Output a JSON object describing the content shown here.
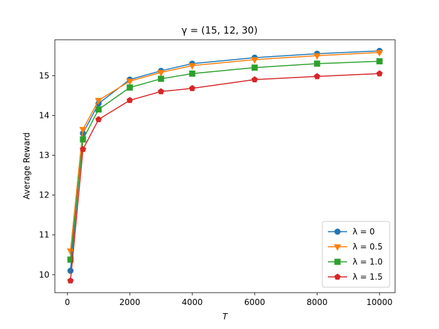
{
  "chart_data": {
    "type": "line",
    "title": "γ = (15, 12, 30)",
    "xlabel": "T",
    "ylabel": "Average Reward",
    "xlim": [
      -400,
      10500
    ],
    "ylim": [
      9.55,
      15.9
    ],
    "x_ticks": [
      0,
      2000,
      4000,
      6000,
      8000,
      10000
    ],
    "y_ticks": [
      10,
      11,
      12,
      13,
      14,
      15
    ],
    "grid": false,
    "legend_position": "lower right",
    "x": [
      100,
      500,
      1000,
      2000,
      3000,
      4000,
      6000,
      8000,
      10000
    ],
    "series": [
      {
        "name": "λ = 0",
        "color": "#1f77b4",
        "marker": "circle",
        "values": [
          10.1,
          13.55,
          14.3,
          14.9,
          15.12,
          15.3,
          15.45,
          15.55,
          15.62
        ]
      },
      {
        "name": "λ = 0.5",
        "color": "#ff7f0e",
        "marker": "triangle-down",
        "values": [
          10.6,
          13.65,
          14.38,
          14.86,
          15.08,
          15.25,
          15.4,
          15.5,
          15.58
        ]
      },
      {
        "name": "λ = 1.0",
        "color": "#2ca02c",
        "marker": "square",
        "values": [
          10.38,
          13.4,
          14.15,
          14.7,
          14.92,
          15.05,
          15.2,
          15.3,
          15.36
        ]
      },
      {
        "name": "λ = 1.5",
        "color": "#d62728",
        "marker": "pentagon",
        "values": [
          9.85,
          13.15,
          13.9,
          14.38,
          14.6,
          14.68,
          14.9,
          14.98,
          15.05
        ]
      }
    ]
  }
}
